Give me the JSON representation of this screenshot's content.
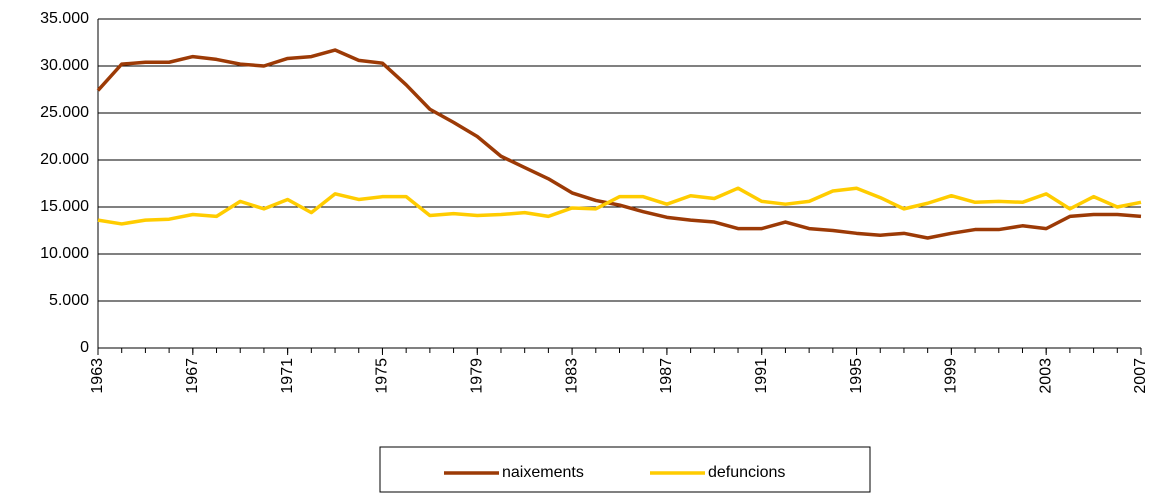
{
  "chart_data": {
    "type": "line",
    "x": [
      1963,
      1964,
      1965,
      1966,
      1967,
      1968,
      1969,
      1970,
      1971,
      1972,
      1973,
      1974,
      1975,
      1976,
      1977,
      1978,
      1979,
      1980,
      1981,
      1982,
      1983,
      1984,
      1985,
      1986,
      1987,
      1988,
      1989,
      1990,
      1991,
      1992,
      1993,
      1994,
      1995,
      1996,
      1997,
      1998,
      1999,
      2000,
      2001,
      2002,
      2003,
      2004,
      2005,
      2006,
      2007
    ],
    "series": [
      {
        "name": "naixements",
        "color": "#9c3a06",
        "values": [
          27400,
          30200,
          30400,
          30400,
          31000,
          30700,
          30200,
          30000,
          30800,
          31000,
          31700,
          30600,
          30300,
          28000,
          25400,
          24000,
          22500,
          20400,
          19200,
          18000,
          16500,
          15700,
          15200,
          14500,
          13900,
          13600,
          13400,
          12700,
          12700,
          13400,
          12700,
          12500,
          12200,
          12000,
          12200,
          11700,
          12200,
          12600,
          12600,
          13000,
          12700,
          14000,
          14200,
          14200,
          14000
        ]
      },
      {
        "name": "defuncions",
        "color": "#ffcc00",
        "values": [
          13600,
          13200,
          13600,
          13700,
          14200,
          14000,
          15600,
          14800,
          15800,
          14400,
          16400,
          15800,
          16100,
          16100,
          14100,
          14300,
          14100,
          14200,
          14400,
          14000,
          14900,
          14800,
          16100,
          16100,
          15300,
          16200,
          15900,
          17000,
          15600,
          15300,
          15600,
          16700,
          17000,
          16000,
          14800,
          15400,
          16200,
          15500,
          15600,
          15500,
          16400,
          14800,
          16100,
          15000,
          15500
        ]
      }
    ],
    "xlim": [
      1963,
      2007
    ],
    "xticks": [
      1963,
      1967,
      1971,
      1975,
      1979,
      1983,
      1987,
      1991,
      1995,
      1999,
      2003,
      2007
    ],
    "ylim": [
      0,
      35000
    ],
    "yticks": [
      0,
      {
        "value": 5000,
        "label": "5.000"
      },
      {
        "value": 10000,
        "label": "10.000"
      },
      {
        "value": 15000,
        "label": "15.000"
      },
      {
        "value": 20000,
        "label": "20.000"
      },
      {
        "value": 25000,
        "label": "25.000"
      },
      {
        "value": 30000,
        "label": "30.000"
      },
      {
        "value": 35000,
        "label": "35.000"
      }
    ],
    "grid": true
  }
}
